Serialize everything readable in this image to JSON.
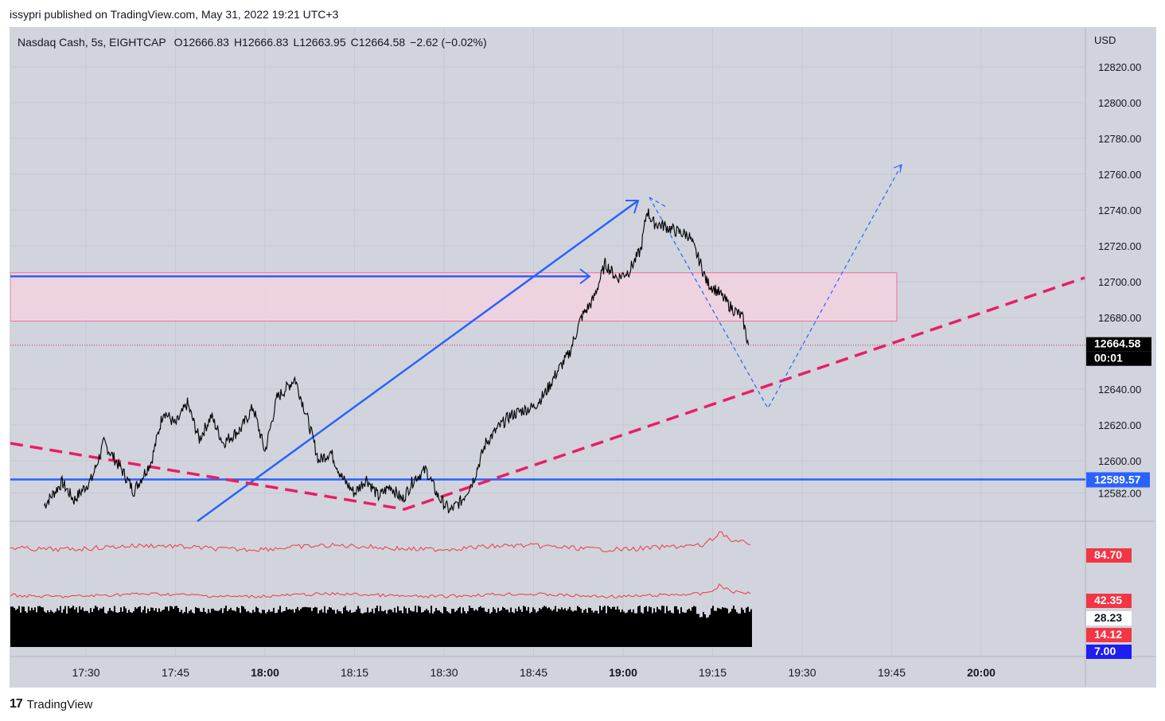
{
  "attribution": "issypri published on TradingView.com, May 31, 2022 19:21 UTC+3",
  "brand": {
    "logo_glyph": "17",
    "name": "TradingView"
  },
  "legend": {
    "symbol": "Nasdaq Cash, 5s, EIGHTCAP",
    "open": "O12666.83",
    "high": "H12666.83",
    "low": "L12663.95",
    "close": "C12664.58",
    "change": "−2.62 (−0.02%)"
  },
  "colors": {
    "background": "#d1d4dc",
    "grid": "#c6c9d1",
    "price": "#000000",
    "blue_line": "#2962ff",
    "pink_dash": "#e91e63",
    "zone_fill": "#f3d3e1",
    "zone_border": "#f06292",
    "indicator_red": "#f23645",
    "volume": "#000000",
    "label_black": "#000000",
    "label_blue": "#2962ff",
    "label_red": "#f23645",
    "label_darkblue": "#1e1ef0"
  },
  "chart_data": {
    "type": "line",
    "currency": "USD",
    "x_ticks": [
      "17:30",
      "17:45",
      "18:00",
      "18:15",
      "18:30",
      "18:45",
      "19:00",
      "19:15",
      "19:30",
      "19:45",
      "20:00"
    ],
    "x_ticks_bold": [
      "18:00",
      "19:00",
      "20:00"
    ],
    "y_ticks": [
      "12820.00",
      "12800.00",
      "12780.00",
      "12760.00",
      "12740.00",
      "12720.00",
      "12700.00",
      "12680.00",
      "12640.00",
      "12620.00",
      "12600.00",
      "12582.00"
    ],
    "ylim": [
      12570,
      12840
    ],
    "series": [
      {
        "x": [
          "17:23",
          "17:26",
          "17:28",
          "17:31",
          "17:33",
          "17:36",
          "17:38",
          "17:41",
          "17:43",
          "17:45",
          "17:47",
          "17:49",
          "17:51",
          "17:53",
          "17:56",
          "17:58",
          "18:00",
          "18:02",
          "18:04",
          "18:05",
          "18:07",
          "18:09",
          "18:11",
          "18:13",
          "18:15",
          "18:17",
          "18:19",
          "18:21",
          "18:23",
          "18:25",
          "18:27",
          "18:29",
          "18:31",
          "18:33",
          "18:35",
          "18:37",
          "18:39",
          "18:41",
          "18:43",
          "18:45",
          "18:47",
          "18:49",
          "18:51",
          "18:53",
          "18:55",
          "18:57",
          "18:59",
          "19:01",
          "19:03",
          "19:04",
          "19:05",
          "19:07",
          "19:09",
          "19:11",
          "19:13",
          "19:14",
          "19:16",
          "19:18",
          "19:20",
          "19:21"
        ],
        "values": [
          12575,
          12588,
          12578,
          12590,
          12610,
          12595,
          12583,
          12600,
          12628,
          12620,
          12632,
          12612,
          12625,
          12610,
          12618,
          12630,
          12605,
          12635,
          12642,
          12646,
          12625,
          12600,
          12605,
          12590,
          12582,
          12590,
          12580,
          12586,
          12578,
          12590,
          12595,
          12580,
          12572,
          12578,
          12590,
          12610,
          12618,
          12625,
          12628,
          12630,
          12638,
          12650,
          12660,
          12680,
          12690,
          12710,
          12702,
          12706,
          12718,
          12740,
          12733,
          12731,
          12728,
          12726,
          12710,
          12700,
          12694,
          12686,
          12680,
          12664.58
        ]
      }
    ],
    "indicators": [
      {
        "name": "upper",
        "last_value": "84.70"
      },
      {
        "name": "lower",
        "last_value": "42.35"
      }
    ],
    "indicator_scale_labels": [
      "28.23",
      "14.12",
      "7.00"
    ],
    "drawings": {
      "horizontal_level": "12589.57",
      "zone": [
        12678,
        12705
      ],
      "resistance_arrow_level": 12703,
      "current_price": "12664.58",
      "countdown": "00:01"
    }
  }
}
